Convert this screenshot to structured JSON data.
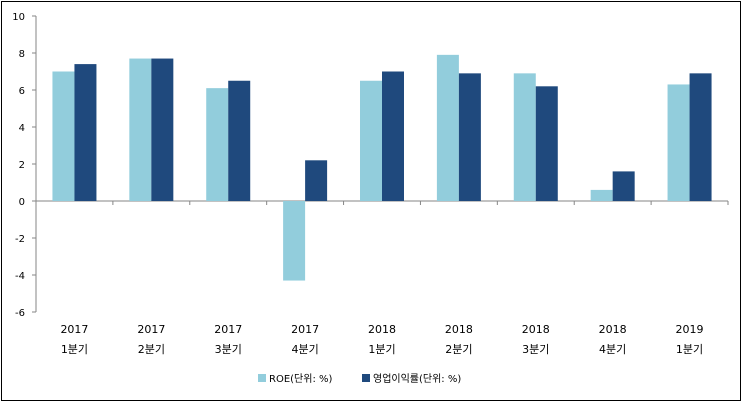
{
  "chart_data": {
    "type": "bar",
    "categories": [
      {
        "year": "2017",
        "quarter": "1분기"
      },
      {
        "year": "2017",
        "quarter": "2분기"
      },
      {
        "year": "2017",
        "quarter": "3분기"
      },
      {
        "year": "2017",
        "quarter": "4분기"
      },
      {
        "year": "2018",
        "quarter": "1분기"
      },
      {
        "year": "2018",
        "quarter": "2분기"
      },
      {
        "year": "2018",
        "quarter": "3분기"
      },
      {
        "year": "2018",
        "quarter": "4분기"
      },
      {
        "year": "2019",
        "quarter": "1분기"
      }
    ],
    "series": [
      {
        "name": "ROE(단위: %)",
        "color": "#92cddc",
        "values": [
          7.0,
          7.7,
          6.1,
          -4.3,
          6.5,
          7.9,
          6.9,
          0.6,
          6.3
        ]
      },
      {
        "name": "영업이익률(단위: %)",
        "color": "#1f497d",
        "values": [
          7.4,
          7.7,
          6.5,
          2.2,
          7.0,
          6.9,
          6.2,
          1.6,
          6.9
        ]
      }
    ],
    "yticks": [
      "-6",
      "-4",
      "-2",
      "0",
      "2",
      "4",
      "6",
      "8",
      "10"
    ],
    "ylim": [
      -6,
      10
    ],
    "legend_position": "bottom",
    "title": "",
    "xlabel": "",
    "ylabel": ""
  }
}
